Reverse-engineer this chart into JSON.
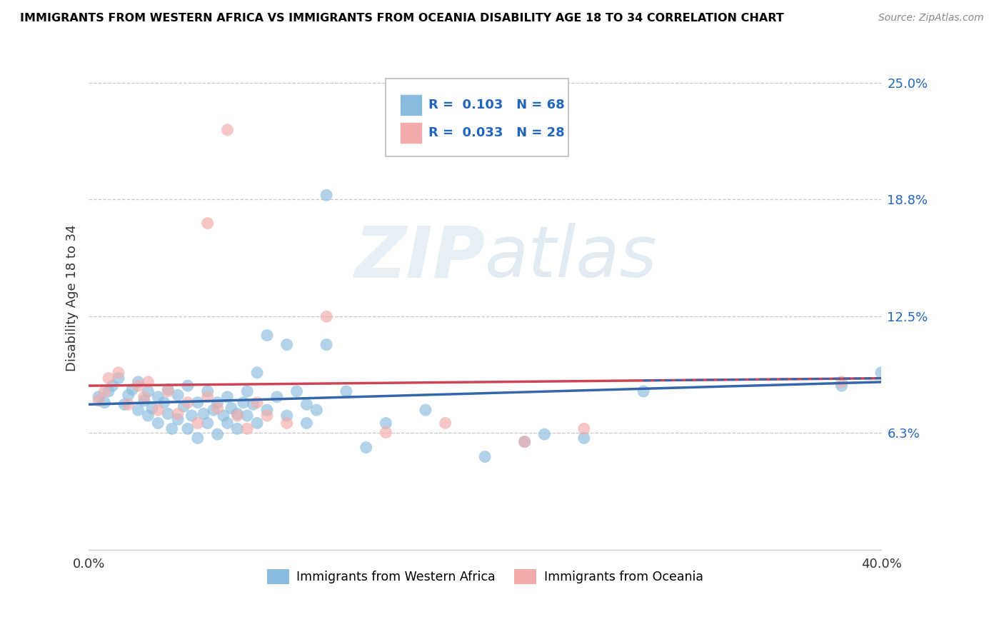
{
  "title": "IMMIGRANTS FROM WESTERN AFRICA VS IMMIGRANTS FROM OCEANIA DISABILITY AGE 18 TO 34 CORRELATION CHART",
  "source": "Source: ZipAtlas.com",
  "ylabel": "Disability Age 18 to 34",
  "x_min": 0.0,
  "x_max": 0.4,
  "y_min": 0.0,
  "y_max": 0.27,
  "y_tick_labels_right": [
    "6.3%",
    "12.5%",
    "18.8%",
    "25.0%"
  ],
  "y_tick_values_right": [
    0.063,
    0.125,
    0.188,
    0.25
  ],
  "legend_blue_r": "0.103",
  "legend_blue_n": "68",
  "legend_pink_r": "0.033",
  "legend_pink_n": "28",
  "legend_bottom_blue": "Immigrants from Western Africa",
  "legend_bottom_pink": "Immigrants from Oceania",
  "blue_color": "#88bbdd",
  "pink_color": "#f4aaaa",
  "blue_line_color": "#3366aa",
  "pink_line_color": "#cc4455",
  "blue_scatter_x": [
    0.005,
    0.008,
    0.01,
    0.012,
    0.015,
    0.018,
    0.02,
    0.022,
    0.025,
    0.025,
    0.028,
    0.03,
    0.03,
    0.032,
    0.035,
    0.035,
    0.038,
    0.04,
    0.04,
    0.042,
    0.045,
    0.045,
    0.048,
    0.05,
    0.05,
    0.052,
    0.055,
    0.055,
    0.058,
    0.06,
    0.06,
    0.063,
    0.065,
    0.065,
    0.068,
    0.07,
    0.07,
    0.072,
    0.075,
    0.075,
    0.078,
    0.08,
    0.08,
    0.083,
    0.085,
    0.085,
    0.09,
    0.09,
    0.095,
    0.1,
    0.1,
    0.105,
    0.11,
    0.11,
    0.115,
    0.12,
    0.13,
    0.14,
    0.15,
    0.17,
    0.2,
    0.22,
    0.23,
    0.25,
    0.28,
    0.38,
    0.4,
    0.12
  ],
  "blue_scatter_y": [
    0.082,
    0.079,
    0.085,
    0.088,
    0.092,
    0.078,
    0.083,
    0.086,
    0.075,
    0.09,
    0.08,
    0.072,
    0.085,
    0.076,
    0.068,
    0.082,
    0.079,
    0.073,
    0.086,
    0.065,
    0.07,
    0.083,
    0.077,
    0.065,
    0.088,
    0.072,
    0.06,
    0.079,
    0.073,
    0.085,
    0.068,
    0.075,
    0.062,
    0.079,
    0.072,
    0.068,
    0.082,
    0.076,
    0.065,
    0.073,
    0.079,
    0.072,
    0.085,
    0.078,
    0.095,
    0.068,
    0.115,
    0.075,
    0.082,
    0.11,
    0.072,
    0.085,
    0.078,
    0.068,
    0.075,
    0.11,
    0.085,
    0.055,
    0.068,
    0.075,
    0.05,
    0.058,
    0.062,
    0.06,
    0.085,
    0.088,
    0.095,
    0.19
  ],
  "pink_scatter_x": [
    0.005,
    0.008,
    0.01,
    0.015,
    0.02,
    0.025,
    0.028,
    0.03,
    0.035,
    0.04,
    0.045,
    0.05,
    0.055,
    0.06,
    0.065,
    0.07,
    0.075,
    0.08,
    0.085,
    0.09,
    0.1,
    0.12,
    0.15,
    0.18,
    0.22,
    0.25,
    0.38,
    0.06
  ],
  "pink_scatter_y": [
    0.08,
    0.085,
    0.092,
    0.095,
    0.078,
    0.088,
    0.082,
    0.09,
    0.075,
    0.085,
    0.073,
    0.079,
    0.068,
    0.082,
    0.076,
    0.225,
    0.072,
    0.065,
    0.079,
    0.072,
    0.068,
    0.125,
    0.063,
    0.068,
    0.058,
    0.065,
    0.09,
    0.175
  ],
  "blue_trend_start": 0.078,
  "blue_trend_end": 0.09,
  "pink_trend_start": 0.088,
  "pink_trend_end": 0.092
}
